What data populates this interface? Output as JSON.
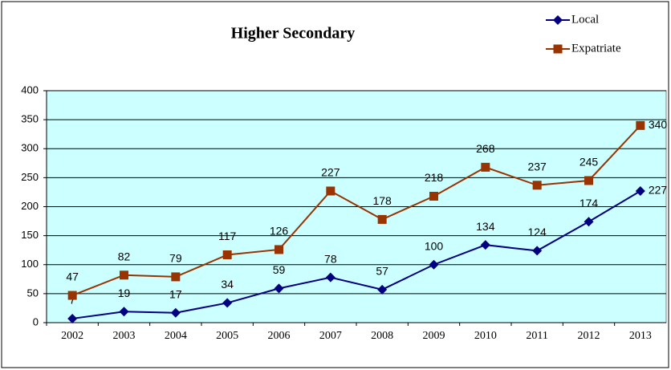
{
  "chart_data": {
    "type": "line",
    "title": "Higher Secondary",
    "categories": [
      "2002",
      "2003",
      "2004",
      "2005",
      "2006",
      "2007",
      "2008",
      "2009",
      "2010",
      "2011",
      "2012",
      "2013"
    ],
    "series": [
      {
        "name": "Local",
        "color": "#000080",
        "marker": "diamond",
        "values": [
          7,
          19,
          17,
          34,
          59,
          78,
          57,
          100,
          134,
          124,
          174,
          227
        ]
      },
      {
        "name": "Expatriate",
        "color": "#993300",
        "marker": "square",
        "values": [
          47,
          82,
          79,
          117,
          126,
          227,
          178,
          218,
          268,
          237,
          245,
          340
        ]
      }
    ],
    "ylim": [
      0,
      400
    ],
    "yticks": [
      0,
      50,
      100,
      150,
      200,
      250,
      300,
      350,
      400
    ],
    "grid": true,
    "legend": "top-right"
  }
}
